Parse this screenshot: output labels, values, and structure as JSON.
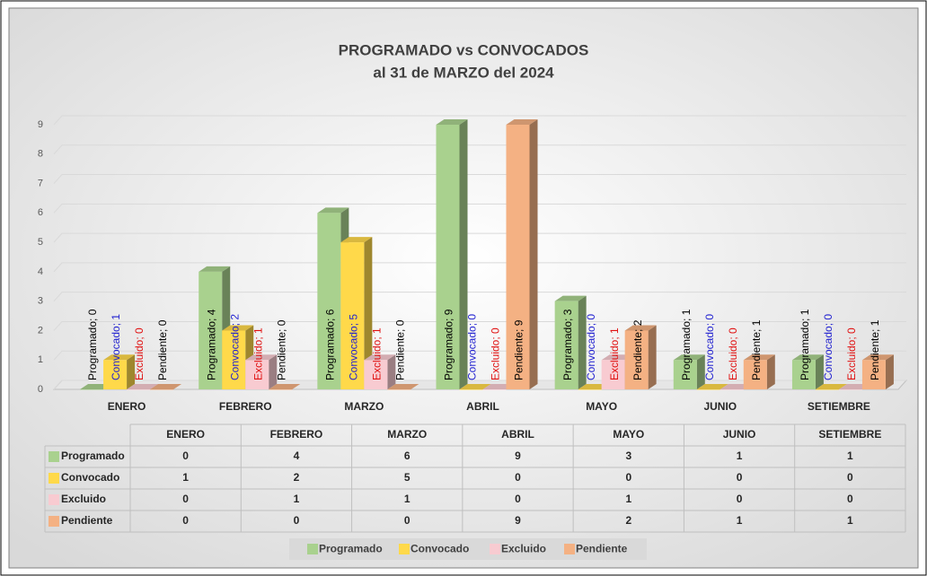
{
  "chart_data": {
    "type": "bar",
    "title": "PROGRAMADO vs CONVOCADOS",
    "subtitle": "al 31 de MARZO del 2024",
    "categories": [
      "ENERO",
      "FEBRERO",
      "MARZO",
      "ABRIL",
      "MAYO",
      "JUNIO",
      "SETIEMBRE"
    ],
    "series": [
      {
        "name": "Programado",
        "color": "#a9d18e",
        "label_color": "#000000",
        "values": [
          0,
          4,
          6,
          9,
          3,
          1,
          1
        ],
        "value_labels": [
          "Programado; 0",
          "Programado; 4",
          "Programado; 6",
          "Programado; 9",
          "Programado; 3",
          "Programado; 1",
          "Programado; 1"
        ]
      },
      {
        "name": "Convocado",
        "color": "#ffd94a",
        "label_color": "#1f1fd0",
        "values": [
          1,
          2,
          5,
          0,
          0,
          0,
          0
        ],
        "value_labels": [
          "Convocado; 1",
          "Convocado; 2",
          "Convocado; 5",
          "Convocado; 0",
          "Convocado; 0",
          "Convocado; 0",
          "Convocado; 0"
        ]
      },
      {
        "name": "Excluido",
        "color": "#f8cbd1",
        "label_color": "#e01010",
        "values": [
          0,
          1,
          1,
          0,
          1,
          0,
          0
        ],
        "value_labels": [
          "Excluido; 0",
          "Excluido; 1",
          "Excluido; 1",
          "Excluido; 0",
          "Excluido; 1",
          "Excluido; 0",
          "Excluido; 0"
        ]
      },
      {
        "name": "Pendiente",
        "color": "#f4b183",
        "label_color": "#000000",
        "values": [
          0,
          0,
          0,
          9,
          2,
          1,
          1
        ],
        "value_labels": [
          "Pendiente; 0",
          "Pendiente; 0",
          "Pendiente; 0",
          "Pendiente; 9",
          "Pendiente; 2",
          "Pendiente; 1",
          "Pendiente; 1"
        ]
      }
    ],
    "ylim": [
      0,
      9
    ],
    "yticks": [
      0,
      1,
      2,
      3,
      4,
      5,
      6,
      7,
      8,
      9
    ],
    "grid": true
  }
}
